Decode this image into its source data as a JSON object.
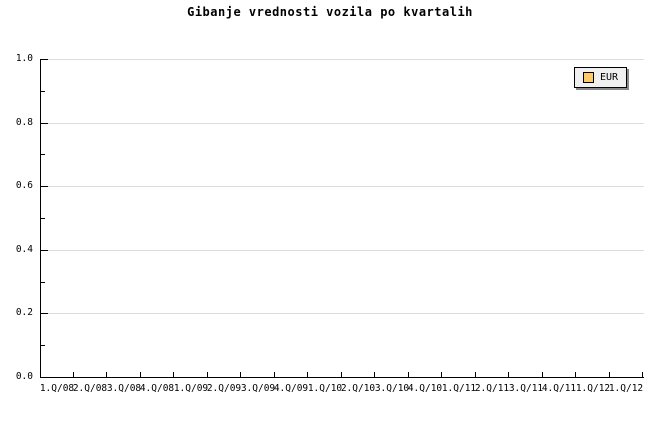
{
  "title": "Gibanje vrednosti vozila po kvartalih",
  "legend": {
    "label": "EUR",
    "swatch_color": "#FFC966",
    "background": "#F0F0F0",
    "border_color": "#000000",
    "shadow_color": "#888888"
  },
  "colors": {
    "background": "#FFFFFF",
    "axis": "#000000",
    "gridline": "#DDDDDD",
    "text": "#000000"
  },
  "chart_data": {
    "type": "line",
    "title": "Gibanje vrednosti vozila po kvartalih",
    "categories": [
      "1.Q/08",
      "2.Q/08",
      "3.Q/08",
      "4.Q/08",
      "1.Q/09",
      "2.Q/09",
      "3.Q/09",
      "4.Q/09",
      "1.Q/10",
      "2.Q/10",
      "3.Q/10",
      "4.Q/10",
      "1.Q/11",
      "2.Q/11",
      "3.Q/11",
      "4.Q/11",
      "1.Q/12",
      "1.Q/12"
    ],
    "series": [
      {
        "name": "EUR",
        "color": "#FFC966",
        "values": []
      }
    ],
    "xlabel": "",
    "ylabel": "",
    "ylim": [
      0.0,
      1.0
    ],
    "yticks": [
      1.0,
      0.8,
      0.6,
      0.4,
      0.2,
      0.0
    ],
    "ytick_labels": [
      "1.0",
      "0.8",
      "0.6",
      "0.4",
      "0.2",
      "0.0"
    ],
    "minor_ytick_step": 0.1,
    "grid": "horizontal-major-only",
    "legend_position": "top-right",
    "plot_is_empty": true
  }
}
